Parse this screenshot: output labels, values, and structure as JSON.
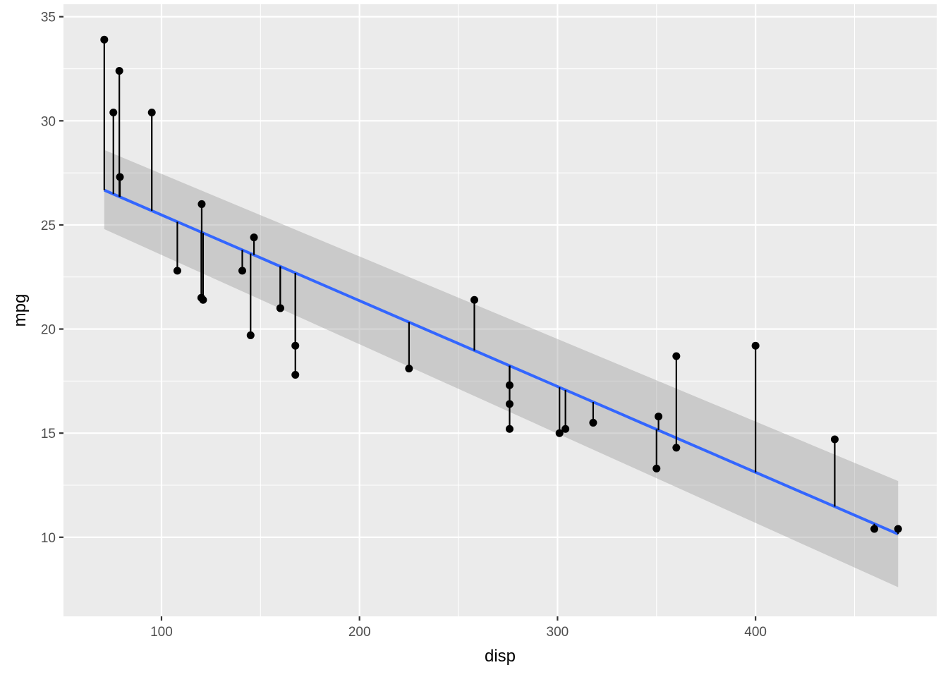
{
  "chart_data": {
    "type": "scatter",
    "title": "",
    "xlabel": "disp",
    "ylabel": "mpg",
    "xlim": [
      50.5,
      491.5
    ],
    "ylim": [
      6.2,
      35.6
    ],
    "x_major_ticks": [
      100,
      200,
      300,
      400
    ],
    "x_minor_ticks": [
      150,
      250,
      350,
      450
    ],
    "y_major_ticks": [
      10,
      15,
      20,
      25,
      30,
      35
    ],
    "y_minor_ticks": [
      12.5,
      17.5,
      22.5,
      27.5,
      32.5
    ],
    "grid": true,
    "legend": "none",
    "fit": {
      "method": "lm",
      "intercept": 29.6,
      "slope": -0.0412,
      "x_range": [
        71.1,
        472
      ],
      "ci_lower": [
        24.8,
        7.6
      ],
      "ci_upper": [
        28.6,
        12.7
      ],
      "line_color": "#3366FF",
      "band_color": "#999999"
    },
    "points": [
      {
        "x": 160,
        "y": 21.0
      },
      {
        "x": 160,
        "y": 21.0
      },
      {
        "x": 108,
        "y": 22.8
      },
      {
        "x": 258,
        "y": 21.4
      },
      {
        "x": 360,
        "y": 18.7
      },
      {
        "x": 225,
        "y": 18.1
      },
      {
        "x": 360,
        "y": 14.3
      },
      {
        "x": 146.7,
        "y": 24.4
      },
      {
        "x": 140.8,
        "y": 22.8
      },
      {
        "x": 167.6,
        "y": 19.2
      },
      {
        "x": 167.6,
        "y": 17.8
      },
      {
        "x": 275.8,
        "y": 16.4
      },
      {
        "x": 275.8,
        "y": 17.3
      },
      {
        "x": 275.8,
        "y": 15.2
      },
      {
        "x": 472,
        "y": 10.4
      },
      {
        "x": 460,
        "y": 10.4
      },
      {
        "x": 440,
        "y": 14.7
      },
      {
        "x": 78.7,
        "y": 32.4
      },
      {
        "x": 75.7,
        "y": 30.4
      },
      {
        "x": 71.1,
        "y": 33.9
      },
      {
        "x": 120.1,
        "y": 21.5
      },
      {
        "x": 318,
        "y": 15.5
      },
      {
        "x": 304,
        "y": 15.2
      },
      {
        "x": 350,
        "y": 13.3
      },
      {
        "x": 400,
        "y": 19.2
      },
      {
        "x": 79,
        "y": 27.3
      },
      {
        "x": 120.3,
        "y": 26.0
      },
      {
        "x": 95.1,
        "y": 30.4
      },
      {
        "x": 351,
        "y": 15.8
      },
      {
        "x": 145,
        "y": 19.7
      },
      {
        "x": 301,
        "y": 15.0
      },
      {
        "x": 121,
        "y": 21.4
      }
    ]
  }
}
